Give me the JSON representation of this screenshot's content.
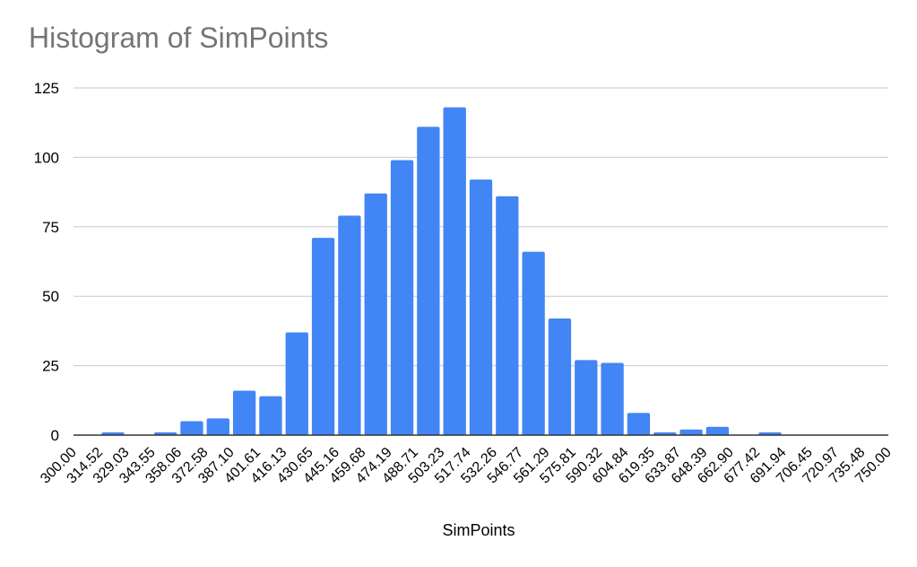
{
  "chart_data": {
    "type": "bar",
    "title": "Histogram of SimPoints",
    "xlabel": "SimPoints",
    "ylabel": "",
    "ylim": [
      0,
      125
    ],
    "yticks": [
      "0",
      "25",
      "50",
      "75",
      "100",
      "125"
    ],
    "bin_edges": [
      "300.00",
      "314.52",
      "329.03",
      "343.55",
      "358.06",
      "372.58",
      "387.10",
      "401.61",
      "416.13",
      "430.65",
      "445.16",
      "459.68",
      "474.19",
      "488.71",
      "503.23",
      "517.74",
      "532.26",
      "546.77",
      "561.29",
      "575.81",
      "590.32",
      "604.84",
      "619.35",
      "633.87",
      "648.39",
      "662.90",
      "677.42",
      "691.94",
      "706.45",
      "720.97",
      "735.48",
      "750.00"
    ],
    "values": [
      0,
      1,
      0,
      1,
      5,
      6,
      16,
      14,
      37,
      71,
      79,
      87,
      99,
      111,
      118,
      92,
      86,
      66,
      42,
      27,
      26,
      8,
      1,
      2,
      3,
      0,
      1,
      0,
      0,
      0,
      0
    ],
    "bar_color": "#4285F4",
    "grid": true,
    "legend": "none"
  }
}
